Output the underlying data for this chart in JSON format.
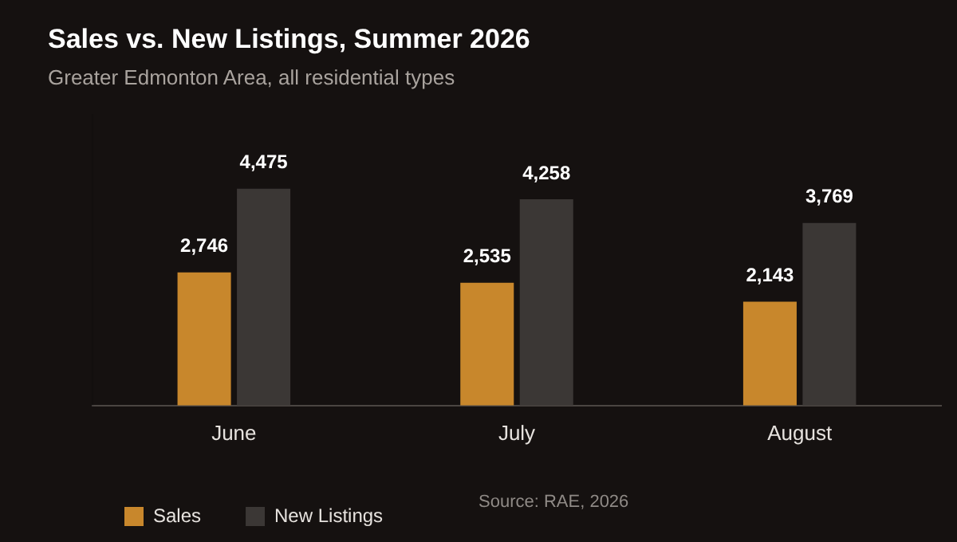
{
  "chart_data": {
    "type": "bar",
    "title": "Sales vs. New Listings, Summer 2026",
    "subtitle": "Greater Edmonton Area, all residential types",
    "categories": [
      "June",
      "July",
      "August"
    ],
    "series": [
      {
        "name": "Sales",
        "color": "#c8872c",
        "values": [
          2746,
          2535,
          2143
        ],
        "value_labels": [
          "2,746",
          "2,535",
          "2,143"
        ]
      },
      {
        "name": "New Listings",
        "color": "#3b3735",
        "values": [
          4475,
          4258,
          3769
        ],
        "value_labels": [
          "4,475",
          "4,258",
          "3,769"
        ]
      }
    ],
    "grid": false,
    "legend": "bottom left",
    "relative": false,
    "annotations": [
      "Source: RAE, 2026"
    ]
  }
}
